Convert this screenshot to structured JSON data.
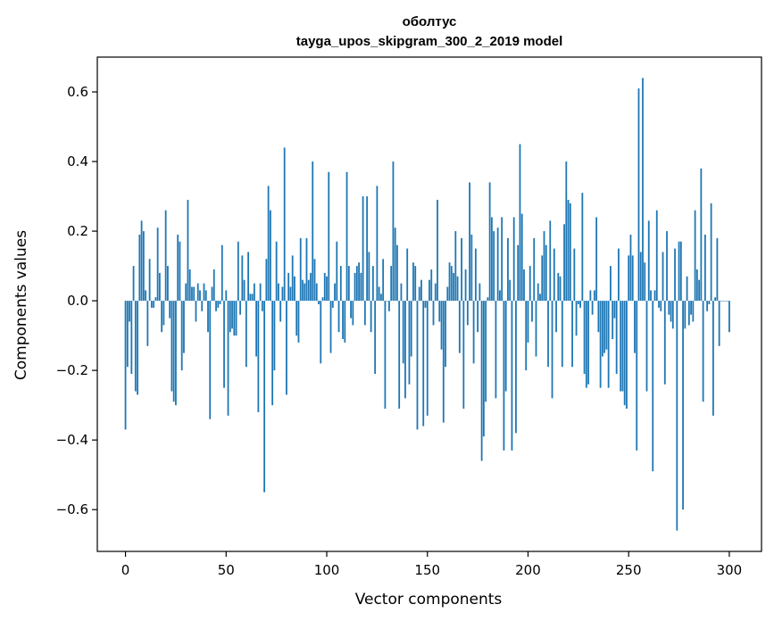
{
  "chart_data": {
    "type": "bar",
    "title": [
      "оболтус",
      "tayga_upos_skipgram_300_2_2019 model"
    ],
    "xlabel": "Vector components",
    "ylabel": "Components values",
    "xlim": [
      -14,
      316
    ],
    "ylim": [
      -0.72,
      0.7
    ],
    "xticks": [
      0,
      50,
      100,
      150,
      200,
      250,
      300
    ],
    "yticks": [
      -0.6,
      -0.4,
      -0.2,
      0.0,
      0.2,
      0.4,
      0.6
    ],
    "xtick_labels": [
      "0",
      "50",
      "100",
      "150",
      "200",
      "250",
      "300"
    ],
    "ytick_labels": [
      "−0.6",
      "−0.4",
      "−0.2",
      "0.0",
      "0.2",
      "0.4",
      "0.6"
    ],
    "grid": false,
    "bar_color": "#1f77b4",
    "values": [
      -0.37,
      -0.19,
      -0.06,
      -0.21,
      0.1,
      -0.26,
      -0.27,
      0.19,
      0.23,
      0.2,
      0.03,
      -0.13,
      0.12,
      -0.02,
      -0.02,
      0.01,
      0.21,
      0.08,
      -0.09,
      -0.07,
      0.26,
      0.1,
      -0.05,
      -0.26,
      -0.29,
      -0.3,
      0.19,
      0.17,
      -0.2,
      -0.15,
      0.05,
      0.29,
      0.09,
      0.04,
      0.04,
      -0.06,
      0.05,
      0.03,
      -0.03,
      0.05,
      0.03,
      -0.09,
      -0.34,
      0.04,
      0.09,
      -0.03,
      -0.02,
      -0.01,
      0.16,
      -0.25,
      0.03,
      -0.33,
      -0.09,
      -0.08,
      -0.1,
      -0.1,
      0.17,
      -0.04,
      0.13,
      0.06,
      -0.19,
      0.14,
      0.02,
      0.02,
      0.05,
      -0.16,
      -0.32,
      0.05,
      -0.03,
      -0.55,
      0.12,
      0.33,
      0.26,
      -0.3,
      -0.2,
      0.17,
      0.05,
      -0.06,
      0.04,
      0.44,
      -0.27,
      0.08,
      0.04,
      0.13,
      0.07,
      -0.1,
      -0.12,
      0.18,
      0.06,
      0.05,
      0.18,
      0.06,
      0.08,
      0.4,
      0.12,
      0.05,
      -0.01,
      -0.18,
      0.01,
      0.08,
      0.07,
      0.37,
      -0.15,
      -0.02,
      0.05,
      0.17,
      -0.09,
      0.1,
      -0.11,
      -0.12,
      0.37,
      0.1,
      -0.05,
      -0.07,
      0.08,
      0.1,
      0.11,
      0.08,
      0.3,
      -0.07,
      0.3,
      0.14,
      -0.09,
      0.1,
      -0.21,
      0.33,
      0.04,
      0.02,
      0.12,
      -0.31,
      0.0,
      -0.03,
      0.1,
      0.4,
      0.21,
      0.16,
      -0.31,
      0.05,
      -0.18,
      -0.28,
      0.15,
      -0.24,
      -0.16,
      0.11,
      0.1,
      -0.37,
      0.04,
      0.06,
      -0.36,
      -0.02,
      -0.33,
      0.06,
      0.09,
      -0.07,
      0.05,
      0.29,
      -0.06,
      -0.14,
      -0.35,
      -0.19,
      0.04,
      0.11,
      0.1,
      0.08,
      0.2,
      0.07,
      -0.15,
      0.18,
      -0.31,
      0.09,
      -0.07,
      0.34,
      0.19,
      -0.18,
      0.15,
      -0.09,
      0.05,
      -0.46,
      -0.39,
      -0.29,
      0.01,
      0.34,
      0.24,
      0.2,
      -0.28,
      0.21,
      0.03,
      0.24,
      -0.43,
      -0.26,
      0.18,
      0.06,
      -0.43,
      0.24,
      -0.38,
      0.16,
      0.45,
      0.25,
      0.09,
      -0.2,
      -0.12,
      0.1,
      -0.06,
      0.18,
      -0.16,
      0.05,
      0.02,
      0.13,
      0.2,
      0.16,
      -0.19,
      0.23,
      -0.28,
      0.15,
      -0.09,
      0.08,
      0.07,
      -0.19,
      0.22,
      0.4,
      0.29,
      0.28,
      -0.19,
      0.15,
      -0.1,
      -0.01,
      -0.02,
      0.31,
      -0.21,
      -0.25,
      -0.24,
      0.03,
      -0.04,
      0.03,
      0.24,
      -0.09,
      -0.25,
      -0.16,
      -0.15,
      -0.14,
      -0.25,
      0.1,
      -0.11,
      -0.05,
      -0.21,
      0.15,
      -0.26,
      -0.26,
      -0.3,
      -0.31,
      0.13,
      0.19,
      0.13,
      -0.15,
      -0.43,
      0.61,
      0.14,
      0.64,
      0.11,
      -0.26,
      0.23,
      0.03,
      -0.49,
      0.03,
      0.26,
      -0.02,
      -0.03,
      0.14,
      -0.24,
      0.2,
      -0.04,
      -0.06,
      -0.08,
      0.15,
      -0.66,
      0.17,
      0.17,
      -0.6,
      -0.08,
      0.07,
      -0.07,
      -0.04,
      -0.06,
      0.26,
      0.09,
      0.06,
      0.38,
      -0.29,
      0.19,
      -0.03,
      -0.01,
      0.28,
      -0.33,
      0.01,
      0.18,
      -0.13,
      0.0,
      0.0,
      0.0,
      0.0,
      -0.09
    ]
  }
}
